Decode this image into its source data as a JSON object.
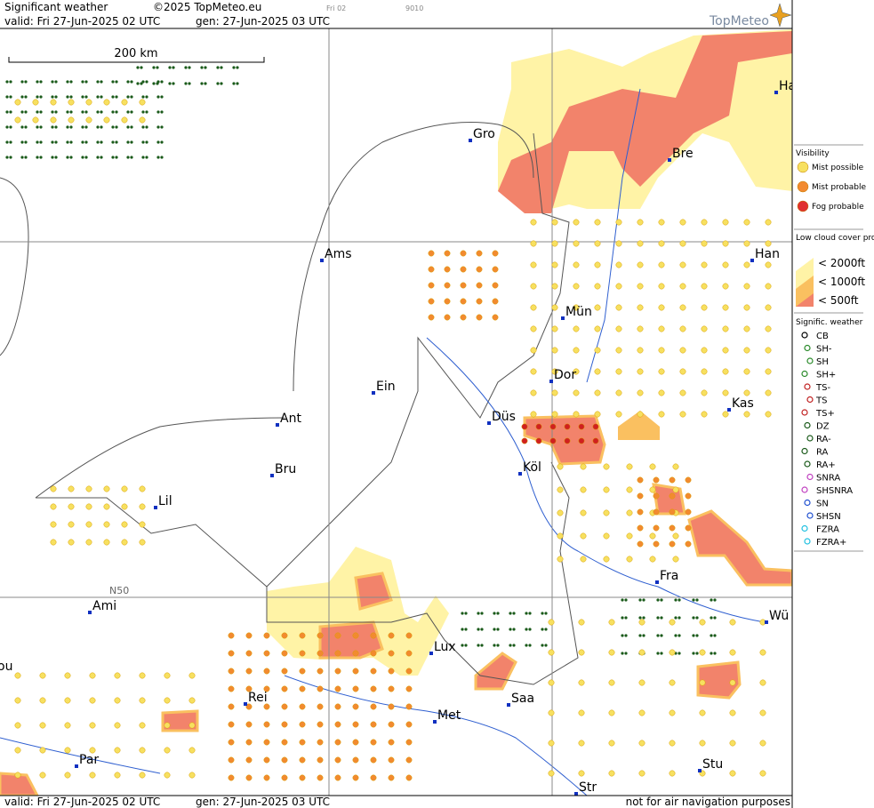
{
  "header": {
    "title": "Significant weather",
    "copyright": "©2025 TopMeteo.eu",
    "frame": "Fri 02",
    "code": "9010",
    "valid": "valid:  Fri  27-Jun-2025  02 UTC",
    "gen": "gen: 27-Jun-2025 03 UTC",
    "logo": "TopMeteo"
  },
  "map": {
    "scale": "200 km",
    "lat_label": "N50",
    "cities": [
      "Gro",
      "Bre",
      "Ha",
      "Ams",
      "Han",
      "Mün",
      "Dor",
      "Ein",
      "Düs",
      "Kas",
      "Ant",
      "Bru",
      "Köl",
      "Lil",
      "Fra",
      "Ami",
      "Wü",
      "Lux",
      "Rei",
      "Saa",
      "Met",
      "Par",
      "Stu",
      "Str",
      "ou"
    ]
  },
  "legend": {
    "visibility": {
      "title": "Visibility",
      "items": [
        "Mist possible",
        "Mist probable",
        "Fog probable"
      ]
    },
    "low_cloud": {
      "title": "Low cloud cover probable",
      "items": [
        "< 2000ft",
        "< 1000ft",
        "<   500ft"
      ]
    },
    "weather": {
      "title": "Signific. weather",
      "items": [
        "CB",
        "SH-",
        "SH",
        "SH+",
        "TS-",
        "TS",
        "TS+",
        "DZ",
        "RA-",
        "RA",
        "RA+",
        "SNRA",
        "SHSNRA",
        "SN",
        "SHSN",
        "FZRA",
        "FZRA+"
      ]
    }
  },
  "footer": {
    "valid": "valid:  Fri  27-Jun-2025  02 UTC",
    "gen": "gen: 27-Jun-2025 03 UTC",
    "disclaimer": "not for air navigation purposes"
  }
}
